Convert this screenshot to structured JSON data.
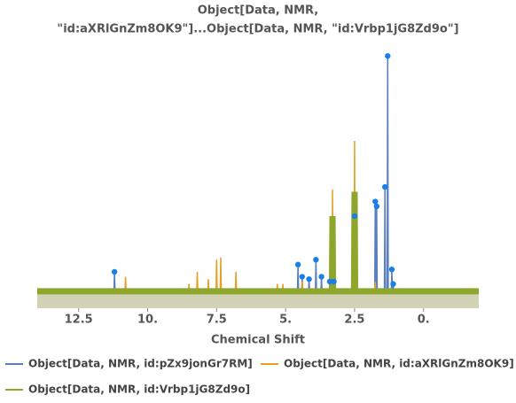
{
  "chart_data": {
    "type": "line",
    "title": [
      "Object[Data, NMR,",
      "\"id:aXRlGnZm8OK9\"]...Object[Data, NMR, \"id:Vrbp1jG8Zd9o\"]"
    ],
    "x_label": "Chemical Shift",
    "xlim": [
      14,
      -2
    ],
    "ylim": [
      -0.07,
      1.0
    ],
    "xticks": [
      12.5,
      {
        "value": 10,
        "label": "10."
      },
      7.5,
      {
        "value": 5,
        "label": "5."
      },
      2.5,
      {
        "value": 0,
        "label": "0."
      }
    ],
    "series": [
      {
        "name": "Object[Data, NMR, id:pZx9jonGr7RM]",
        "color": "#5a7fbf",
        "markers": true,
        "x": [
          14,
          11.22,
          11.2,
          11.18,
          4.57,
          4.55,
          4.53,
          4.42,
          4.4,
          4.38,
          4.17,
          4.15,
          4.13,
          3.92,
          3.9,
          3.88,
          3.72,
          3.7,
          3.68,
          3.42,
          3.4,
          3.38,
          3.27,
          3.25,
          3.23,
          2.52,
          2.5,
          2.48,
          1.77,
          1.75,
          1.73,
          1.72,
          1.7,
          1.68,
          1.42,
          1.4,
          1.38,
          1.32,
          1.3,
          1.28,
          1.17,
          1.15,
          1.13,
          1.12,
          1.1,
          1.08,
          -2
        ],
        "values": [
          0,
          0,
          0.08,
          0,
          0,
          0.11,
          0,
          0,
          0.06,
          0,
          0,
          0.05,
          0,
          0,
          0.13,
          0,
          0,
          0.06,
          0,
          0,
          0.04,
          0,
          0,
          0.04,
          0,
          0,
          0.31,
          0,
          0,
          0.37,
          0,
          0,
          0.35,
          0,
          0,
          0.43,
          0,
          0,
          0.97,
          0,
          0,
          0.09,
          0,
          0,
          0.03,
          0,
          0
        ]
      },
      {
        "name": "Object[Data, NMR, id:aXRlGnZm8OK9]",
        "color": "#e69f27",
        "markers": false,
        "x": [
          14,
          10.82,
          10.8,
          10.78,
          8.52,
          8.5,
          8.48,
          8.22,
          8.2,
          8.18,
          7.82,
          7.8,
          7.78,
          7.52,
          7.5,
          7.48,
          7.37,
          7.35,
          7.33,
          6.82,
          6.8,
          6.78,
          5.32,
          5.3,
          5.28,
          5.12,
          5.1,
          5.08,
          4.42,
          4.4,
          4.38,
          3.32,
          3.3,
          3.28,
          2.52,
          2.5,
          2.48,
          1.77,
          1.75,
          1.73,
          -2
        ],
        "values": [
          0,
          0,
          0.06,
          0,
          0,
          0.03,
          0,
          0,
          0.08,
          0,
          0,
          0.05,
          0,
          0,
          0.13,
          0,
          0,
          0.14,
          0,
          0,
          0.08,
          0,
          0,
          0.03,
          0,
          0,
          0.03,
          0,
          0,
          0.04,
          0,
          0,
          0.42,
          0,
          0,
          0.62,
          0,
          0,
          0.04,
          0,
          0
        ]
      },
      {
        "name": "Object[Data, NMR, id:Vrbp1jG8Zd9o]",
        "color": "#8ea62b",
        "markers": false,
        "x": [
          14,
          3.32,
          3.3,
          3.28,
          2.52,
          2.5,
          2.48,
          -2
        ],
        "values": [
          0,
          0,
          0.31,
          0,
          0,
          0.41,
          0,
          0
        ]
      }
    ]
  }
}
